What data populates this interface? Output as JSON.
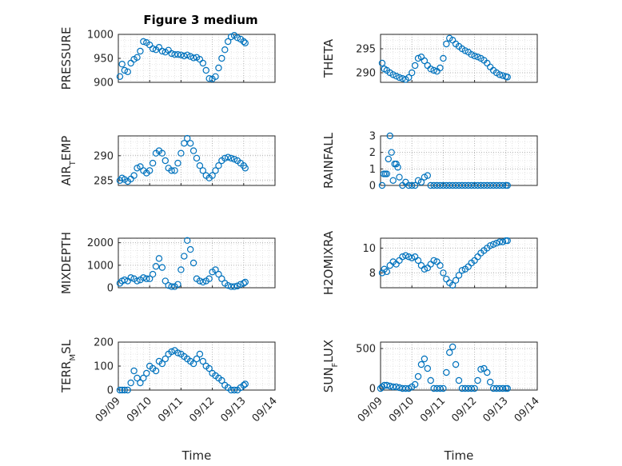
{
  "figure": {
    "title": "Figure 3 medium"
  },
  "chart_data": [
    {
      "type": "scatter",
      "ylabel": "PRESSURE",
      "ylim": [
        900,
        1000
      ],
      "yticks": [
        900,
        950,
        1000
      ],
      "xlim": [
        "09/09",
        "09/14"
      ],
      "xticks": [
        "09/09",
        "09/10",
        "09/11",
        "09/12",
        "09/13",
        "09/14"
      ],
      "grid": true,
      "series": [
        {
          "x": [
            9.05,
            9.12,
            9.2,
            9.3,
            9.4,
            9.5,
            9.6,
            9.7,
            9.8,
            9.9,
            10.0,
            10.1,
            10.2,
            10.3,
            10.4,
            10.5,
            10.6,
            10.7,
            10.8,
            10.9,
            11.0,
            11.1,
            11.2,
            11.3,
            11.4,
            11.5,
            11.6,
            11.7,
            11.8,
            11.9,
            12.0,
            12.1,
            12.2,
            12.3,
            12.4,
            12.5,
            12.6,
            12.7,
            12.8,
            12.9,
            13.0,
            13.05
          ],
          "y": [
            912,
            938,
            925,
            922,
            940,
            948,
            952,
            965,
            985,
            983,
            978,
            970,
            968,
            973,
            965,
            963,
            967,
            960,
            958,
            958,
            957,
            955,
            957,
            954,
            951,
            952,
            948,
            940,
            925,
            908,
            907,
            912,
            930,
            950,
            968,
            985,
            995,
            998,
            993,
            990,
            985,
            982
          ]
        }
      ]
    },
    {
      "type": "scatter",
      "ylabel": "THETA",
      "ylim": [
        288,
        298
      ],
      "yticks": [
        290,
        295
      ],
      "xlim": [
        "09/09",
        "09/14"
      ],
      "xticks": [
        "09/09",
        "09/10",
        "09/11",
        "09/12",
        "09/13",
        "09/14"
      ],
      "grid": true,
      "series": [
        {
          "x": [
            9.05,
            9.12,
            9.2,
            9.3,
            9.4,
            9.5,
            9.6,
            9.7,
            9.8,
            9.9,
            10.0,
            10.1,
            10.2,
            10.3,
            10.4,
            10.5,
            10.6,
            10.7,
            10.8,
            10.9,
            11.0,
            11.1,
            11.2,
            11.3,
            11.4,
            11.5,
            11.6,
            11.7,
            11.8,
            11.9,
            12.0,
            12.1,
            12.2,
            12.3,
            12.4,
            12.5,
            12.6,
            12.7,
            12.8,
            12.9,
            13.0,
            13.05
          ],
          "y": [
            292,
            290.8,
            290.5,
            290,
            289.6,
            289.3,
            289,
            288.8,
            288.6,
            289,
            290,
            291.5,
            293,
            293.3,
            292.5,
            291.5,
            290.8,
            290.5,
            290.3,
            291,
            293,
            296,
            297.2,
            296.8,
            296,
            295.5,
            295,
            294.6,
            294.3,
            293.8,
            293.5,
            293.3,
            293,
            292.6,
            292,
            291.2,
            290.5,
            290,
            289.6,
            289.4,
            289.2,
            289.1
          ]
        }
      ]
    },
    {
      "type": "scatter",
      "ylabel": "AIR_TEMP",
      "ylim": [
        284,
        294
      ],
      "yticks": [
        285,
        290
      ],
      "xlim": [
        "09/09",
        "09/14"
      ],
      "xticks": [
        "09/09",
        "09/10",
        "09/11",
        "09/12",
        "09/13",
        "09/14"
      ],
      "grid": true,
      "series": [
        {
          "x": [
            9.05,
            9.12,
            9.2,
            9.3,
            9.4,
            9.5,
            9.6,
            9.7,
            9.8,
            9.9,
            10.0,
            10.1,
            10.2,
            10.3,
            10.4,
            10.5,
            10.6,
            10.7,
            10.8,
            10.9,
            11.0,
            11.1,
            11.2,
            11.3,
            11.4,
            11.5,
            11.6,
            11.7,
            11.8,
            11.9,
            12.0,
            12.1,
            12.2,
            12.3,
            12.4,
            12.5,
            12.6,
            12.7,
            12.8,
            12.9,
            13.0,
            13.05
          ],
          "y": [
            285,
            285.5,
            285.2,
            284.8,
            285.3,
            286,
            287.5,
            287.8,
            287,
            286.5,
            287,
            288.5,
            290.5,
            291,
            290.5,
            289,
            287.5,
            287,
            287,
            288.5,
            290.5,
            292.5,
            293.5,
            292.5,
            291,
            289.5,
            288,
            287,
            286,
            285.5,
            286,
            287,
            288,
            289,
            289.5,
            289.7,
            289.5,
            289.3,
            289,
            288.5,
            288,
            287.5
          ]
        }
      ]
    },
    {
      "type": "scatter",
      "ylabel": "RAINFALL",
      "ylim": [
        0,
        3
      ],
      "yticks": [
        0,
        1,
        2,
        3
      ],
      "xlim": [
        "09/09",
        "09/14"
      ],
      "xticks": [
        "09/09",
        "09/10",
        "09/11",
        "09/12",
        "09/13",
        "09/14"
      ],
      "grid": true,
      "series": [
        {
          "x": [
            9.05,
            9.1,
            9.15,
            9.2,
            9.25,
            9.3,
            9.35,
            9.4,
            9.45,
            9.5,
            9.55,
            9.6,
            9.7,
            9.8,
            9.9,
            10.0,
            10.1,
            10.2,
            10.3,
            10.4,
            10.5,
            10.6,
            10.7,
            10.8,
            10.9,
            11.0,
            11.1,
            11.2,
            11.3,
            11.4,
            11.5,
            11.6,
            11.7,
            11.8,
            11.9,
            12.0,
            12.1,
            12.2,
            12.3,
            12.4,
            12.5,
            12.6,
            12.7,
            12.8,
            12.9,
            13.0,
            13.05
          ],
          "y": [
            0,
            0.7,
            0.7,
            0.7,
            1.6,
            3,
            2,
            0.3,
            1.3,
            1.3,
            1.1,
            0.5,
            0,
            0.2,
            0,
            0,
            0,
            0.3,
            0.2,
            0.5,
            0.6,
            0,
            0,
            0,
            0,
            0,
            0,
            0,
            0,
            0,
            0,
            0,
            0,
            0,
            0,
            0,
            0,
            0,
            0,
            0,
            0,
            0,
            0,
            0,
            0,
            0,
            0
          ]
        }
      ]
    },
    {
      "type": "scatter",
      "ylabel": "MIXDEPTH",
      "ylim": [
        0,
        2200
      ],
      "yticks": [
        0,
        1000,
        2000
      ],
      "xlim": [
        "09/09",
        "09/14"
      ],
      "xticks": [
        "09/09",
        "09/10",
        "09/11",
        "09/12",
        "09/13",
        "09/14"
      ],
      "grid": true,
      "series": [
        {
          "x": [
            9.05,
            9.12,
            9.2,
            9.3,
            9.4,
            9.5,
            9.6,
            9.7,
            9.8,
            9.9,
            10.0,
            10.1,
            10.2,
            10.3,
            10.4,
            10.5,
            10.6,
            10.7,
            10.8,
            10.9,
            11.0,
            11.1,
            11.2,
            11.3,
            11.4,
            11.5,
            11.6,
            11.7,
            11.8,
            11.9,
            12.0,
            12.1,
            12.2,
            12.3,
            12.4,
            12.5,
            12.6,
            12.7,
            12.8,
            12.9,
            13.0,
            13.05
          ],
          "y": [
            200,
            300,
            350,
            300,
            450,
            400,
            300,
            350,
            450,
            400,
            400,
            600,
            950,
            1300,
            900,
            300,
            100,
            50,
            50,
            150,
            800,
            1400,
            2100,
            1700,
            1100,
            400,
            300,
            250,
            300,
            400,
            700,
            800,
            600,
            400,
            200,
            100,
            50,
            50,
            80,
            150,
            200,
            250
          ]
        }
      ]
    },
    {
      "type": "scatter",
      "ylabel": "H2OMIXRA",
      "ylim": [
        6.8,
        10.8
      ],
      "yticks": [
        8,
        10
      ],
      "xlim": [
        "09/09",
        "09/14"
      ],
      "xticks": [
        "09/09",
        "09/10",
        "09/11",
        "09/12",
        "09/13",
        "09/14"
      ],
      "grid": true,
      "series": [
        {
          "x": [
            9.05,
            9.12,
            9.2,
            9.3,
            9.4,
            9.5,
            9.6,
            9.7,
            9.8,
            9.9,
            10.0,
            10.1,
            10.2,
            10.3,
            10.4,
            10.5,
            10.6,
            10.7,
            10.8,
            10.9,
            11.0,
            11.1,
            11.2,
            11.3,
            11.4,
            11.5,
            11.6,
            11.7,
            11.8,
            11.9,
            12.0,
            12.1,
            12.2,
            12.3,
            12.4,
            12.5,
            12.6,
            12.7,
            12.8,
            12.9,
            13.0,
            13.05
          ],
          "y": [
            8,
            8.3,
            8.1,
            8.6,
            8.9,
            8.7,
            9,
            9.3,
            9.4,
            9.3,
            9.2,
            9.3,
            9,
            8.6,
            8.3,
            8.4,
            8.7,
            9,
            8.9,
            8.6,
            8,
            7.5,
            7.2,
            7,
            7.4,
            7.8,
            8.2,
            8.3,
            8.5,
            8.8,
            9,
            9.3,
            9.6,
            9.8,
            10,
            10.2,
            10.3,
            10.4,
            10.5,
            10.5,
            10.6,
            10.6
          ]
        }
      ]
    },
    {
      "type": "scatter",
      "ylabel": "TERR_MSL",
      "ylim": [
        0,
        200
      ],
      "yticks": [
        0,
        100,
        200
      ],
      "xlim": [
        "09/09",
        "09/14"
      ],
      "xticks": [
        "09/09",
        "09/10",
        "09/11",
        "09/12",
        "09/13",
        "09/14"
      ],
      "grid": true,
      "series": [
        {
          "x": [
            9.05,
            9.12,
            9.2,
            9.3,
            9.4,
            9.5,
            9.6,
            9.7,
            9.8,
            9.9,
            10.0,
            10.1,
            10.2,
            10.3,
            10.4,
            10.5,
            10.6,
            10.7,
            10.8,
            10.9,
            11.0,
            11.1,
            11.2,
            11.3,
            11.4,
            11.5,
            11.6,
            11.7,
            11.8,
            11.9,
            12.0,
            12.1,
            12.2,
            12.3,
            12.4,
            12.5,
            12.6,
            12.7,
            12.8,
            12.9,
            13.0,
            13.05
          ],
          "y": [
            0,
            0,
            0,
            0,
            30,
            80,
            50,
            30,
            50,
            70,
            100,
            90,
            80,
            120,
            110,
            130,
            150,
            160,
            165,
            155,
            150,
            140,
            130,
            120,
            110,
            130,
            150,
            120,
            100,
            90,
            70,
            60,
            50,
            40,
            20,
            10,
            0,
            0,
            0,
            10,
            20,
            25
          ]
        }
      ]
    },
    {
      "type": "scatter",
      "ylabel": "SUN_FLUX",
      "ylim": [
        -20,
        580
      ],
      "yticks": [
        0,
        500
      ],
      "xlim": [
        "09/09",
        "09/14"
      ],
      "xticks": [
        "09/09",
        "09/10",
        "09/11",
        "09/12",
        "09/13",
        "09/14"
      ],
      "grid": true,
      "series": [
        {
          "x": [
            9.0,
            9.05,
            9.12,
            9.2,
            9.3,
            9.4,
            9.5,
            9.6,
            9.7,
            9.8,
            9.9,
            10.0,
            10.1,
            10.2,
            10.3,
            10.4,
            10.5,
            10.6,
            10.7,
            10.8,
            10.9,
            11.0,
            11.1,
            11.2,
            11.3,
            11.4,
            11.5,
            11.6,
            11.7,
            11.8,
            11.9,
            12.0,
            12.1,
            12.2,
            12.3,
            12.4,
            12.5,
            12.6,
            12.7,
            12.8,
            12.9,
            13.0,
            13.05
          ],
          "y": [
            0,
            20,
            40,
            40,
            30,
            20,
            20,
            10,
            0,
            0,
            0,
            20,
            50,
            150,
            300,
            370,
            250,
            100,
            0,
            0,
            0,
            0,
            200,
            450,
            520,
            300,
            100,
            0,
            0,
            0,
            0,
            0,
            100,
            240,
            250,
            200,
            80,
            0,
            0,
            0,
            0,
            0,
            0
          ]
        }
      ]
    }
  ],
  "shared": {
    "xlabel": "Time"
  }
}
